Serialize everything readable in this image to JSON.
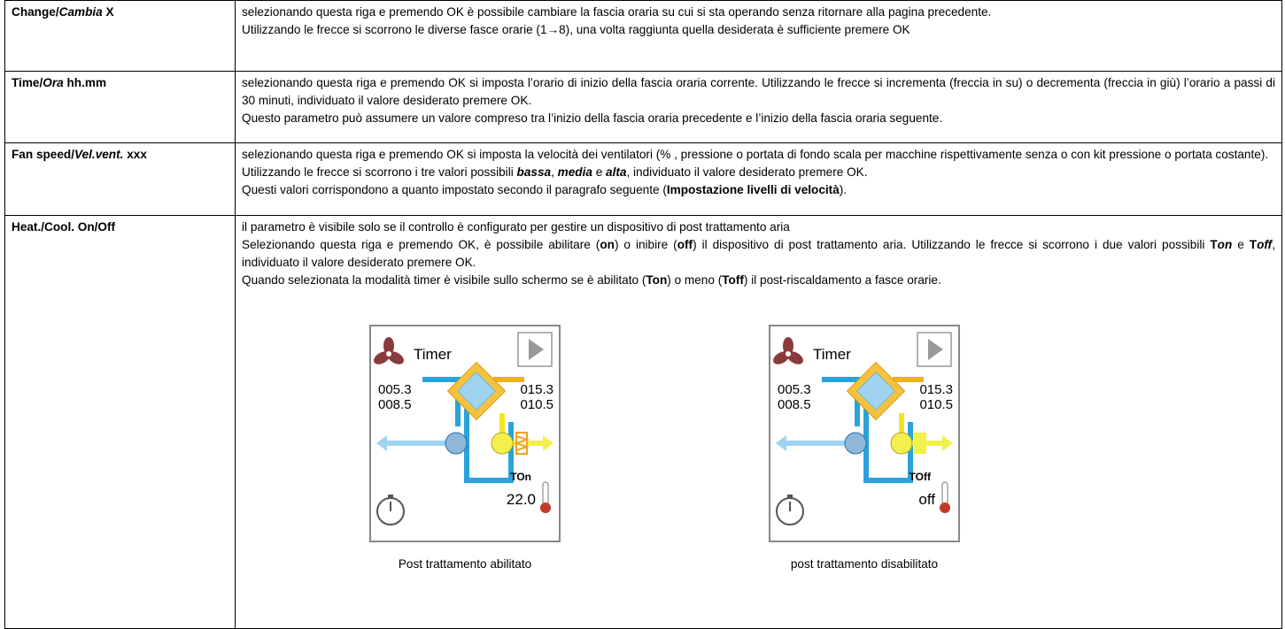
{
  "table": {
    "rows": [
      {
        "label": [
          {
            "bold": "Change/"
          },
          {
            "bold_italic": "Cambia"
          },
          {
            "bold": " X"
          }
        ],
        "paragraphs": [
          [
            "selezionando questa riga e premendo OK è possibile cambiare la fascia oraria su cui si sta operando senza ritornare alla pagina precedente."
          ],
          [
            "Utilizzando le frecce si scorrono le diverse fasce orarie (1→8), una volta raggiunta quella desiderata è sufficiente premere OK"
          ]
        ]
      },
      {
        "label": [
          {
            "bold": "Time/"
          },
          {
            "bold_italic": "Ora"
          },
          {
            "bold": " hh.mm"
          }
        ],
        "paragraphs": [
          [
            "selezionando questa riga e premendo OK si imposta l’orario di inizio della fascia oraria corrente. Utilizzando le frecce si incrementa (freccia in su) o decrementa (freccia in giù) l’orario a passi di 30 minuti, individuato il valore desiderato premere OK."
          ],
          [
            "Questo parametro può assumere un valore compreso tra l’inizio della fascia oraria precedente e l’inizio della fascia oraria seguente."
          ]
        ]
      },
      {
        "label": [
          {
            "bold": "Fan speed/"
          },
          {
            "bold_italic": "Vel.vent."
          },
          {
            "bold": " xxx"
          }
        ],
        "paragraphs": [
          [
            "selezionando questa riga e premendo OK si imposta la velocità dei ventilatori (% , pressione o portata di fondo scala per macchine rispettivamente senza o con kit pressione o portata costante)."
          ],
          [
            "Utilizzando le frecce si scorrono i tre valori possibili ",
            {
              "bold_italic": "bassa"
            },
            ", ",
            {
              "bold_italic": "media"
            },
            " e ",
            {
              "bold_italic": "alta"
            },
            ", individuato il valore desiderato premere OK."
          ],
          [
            "Questi valori corrispondono a quanto impostato secondo il paragrafo seguente (",
            {
              "bold": "Impostazione livelli di velocità"
            },
            ")."
          ]
        ]
      },
      {
        "label": [
          {
            "bold": "Heat./Cool. On/Off"
          }
        ],
        "paragraphs": [
          [
            "il parametro è visibile solo se il controllo è configurato per gestire un dispositivo di post trattamento aria"
          ],
          [
            "Selezionando questa riga e premendo OK, è possibile abilitare (",
            {
              "bold": "on"
            },
            ") o inibire (",
            {
              "bold": "off"
            },
            ") il dispositivo di post trattamento aria. Utilizzando le frecce si scorrono i due valori possibili ",
            {
              "bold": "T"
            },
            {
              "bold_italic": "on"
            },
            " e ",
            {
              "bold": "T"
            },
            {
              "bold_italic": "off"
            },
            ", individuato il valore desiderato premere OK."
          ],
          [
            "Quando selezionata la modalità timer è visibile sullo schermo se è abilitato (",
            {
              "bold": "Ton"
            },
            ") o meno (",
            {
              "bold": "Toff"
            },
            ") il post-riscaldamento a fasce orarie."
          ]
        ],
        "panels": [
          {
            "mode": "Timer",
            "left_top": "005.3",
            "left_bottom": "008.5",
            "right_top": "015.3",
            "right_bottom": "010.5",
            "status": "TOn",
            "temperature": "22.0",
            "caption": "Post trattamento abilitato"
          },
          {
            "mode": "Timer",
            "left_top": "005.3",
            "left_bottom": "008.5",
            "right_top": "015.3",
            "right_bottom": "010.5",
            "status": "TOff",
            "temperature": "off",
            "caption": "post trattamento disabilitato"
          }
        ]
      }
    ]
  }
}
